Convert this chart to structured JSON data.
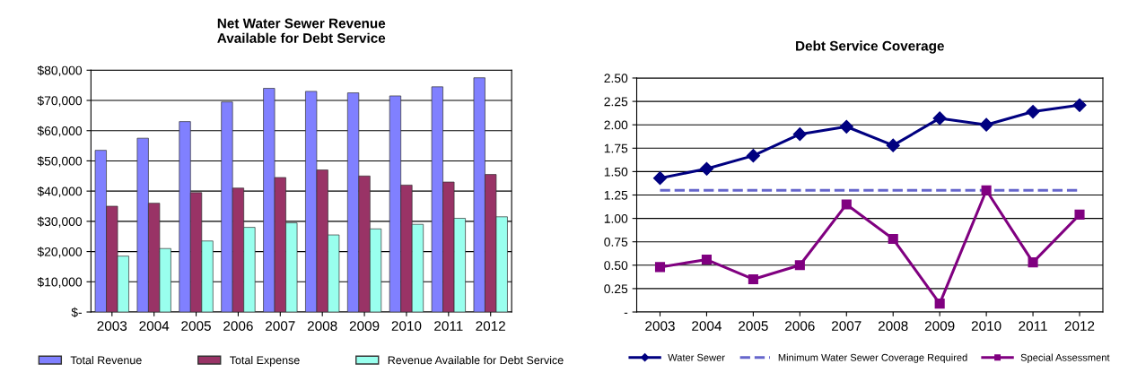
{
  "chart_data": [
    {
      "type": "bar",
      "title": "Net Water Sewer Revenue\nAvailable for Debt Service",
      "categories": [
        "2003",
        "2004",
        "2005",
        "2006",
        "2007",
        "2008",
        "2009",
        "2010",
        "2011",
        "2012"
      ],
      "series": [
        {
          "name": "Total Revenue",
          "color": "#8080ff",
          "values": [
            53500,
            57500,
            63000,
            69500,
            74000,
            73000,
            72500,
            71500,
            74500,
            77500
          ]
        },
        {
          "name": "Total Expense",
          "color": "#993366",
          "values": [
            35000,
            36000,
            39500,
            41000,
            44500,
            47000,
            45000,
            42000,
            43000,
            45500
          ]
        },
        {
          "name": "Revenue Available for Debt Service",
          "color": "#99ffee",
          "values": [
            18500,
            21000,
            23500,
            28000,
            29500,
            25500,
            27500,
            29000,
            31000,
            31500
          ]
        }
      ],
      "ylim": [
        0,
        80000
      ],
      "yticks": [
        {
          "value": 0,
          "label": "$-"
        },
        {
          "value": 10000,
          "label": "$10,000"
        },
        {
          "value": 20000,
          "label": "$20,000"
        },
        {
          "value": 30000,
          "label": "$30,000"
        },
        {
          "value": 40000,
          "label": "$40,000"
        },
        {
          "value": 50000,
          "label": "$50,000"
        },
        {
          "value": 60000,
          "label": "$60,000"
        },
        {
          "value": 70000,
          "label": "$70,000"
        },
        {
          "value": 80000,
          "label": "$80,000"
        }
      ],
      "grid": "y",
      "legend": "bottom"
    },
    {
      "type": "line",
      "title": "Debt Service Coverage",
      "categories": [
        "2003",
        "2004",
        "2005",
        "2006",
        "2007",
        "2008",
        "2009",
        "2010",
        "2011",
        "2012"
      ],
      "series": [
        {
          "name": "Water Sewer",
          "color": "#000080",
          "marker": "diamond",
          "line_style": "solid",
          "values": [
            1.43,
            1.53,
            1.67,
            1.9,
            1.98,
            1.78,
            2.07,
            2.0,
            2.14,
            2.21
          ]
        },
        {
          "name": "Minimum Water Sewer Coverage Required",
          "color": "#6666cc",
          "marker": "none",
          "line_style": "dashed",
          "values": [
            1.3,
            1.3,
            1.3,
            1.3,
            1.3,
            1.3,
            1.3,
            1.3,
            1.3,
            1.3
          ]
        },
        {
          "name": "Special Assessment",
          "color": "#800080",
          "marker": "square",
          "line_style": "solid",
          "values": [
            0.48,
            0.56,
            0.35,
            0.5,
            1.15,
            0.78,
            0.09,
            1.3,
            0.53,
            1.04
          ]
        }
      ],
      "ylim": [
        0,
        2.5
      ],
      "yticks": [
        {
          "value": 0,
          "label": "-"
        },
        0.25,
        {
          "value": 0.5,
          "label": "0.50"
        },
        0.75,
        {
          "value": 1,
          "label": "1.00"
        },
        1.25,
        {
          "value": 1.5,
          "label": "1.50"
        },
        1.75,
        {
          "value": 2,
          "label": "2.00"
        },
        2.25,
        {
          "value": 2.5,
          "label": "2.50"
        }
      ],
      "grid": "y",
      "legend": "bottom"
    }
  ]
}
